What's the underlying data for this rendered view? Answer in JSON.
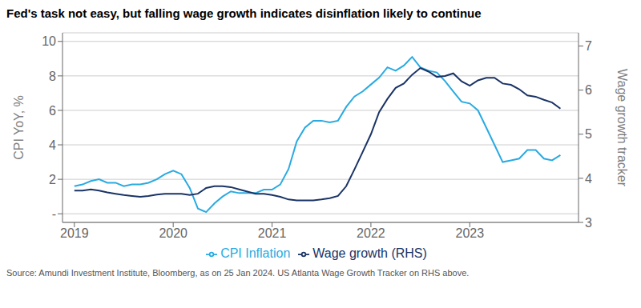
{
  "chart_data": {
    "type": "line",
    "title": "Fed's task not easy, but falling wage growth indicates disinflation likely to continue",
    "annotations": [
      "Source: Amundi Investment Institute, Bloomberg, as on 25 Jan 2024. US Atlanta Wage Growth Tracker on RHS above."
    ],
    "y_label": "CPI YoY, %",
    "y2_label": "Wage growth tracker",
    "x": [
      2019.0,
      2019.083,
      2019.167,
      2019.25,
      2019.333,
      2019.417,
      2019.5,
      2019.583,
      2019.667,
      2019.75,
      2019.833,
      2019.917,
      2020.0,
      2020.083,
      2020.167,
      2020.25,
      2020.333,
      2020.417,
      2020.5,
      2020.583,
      2020.667,
      2020.75,
      2020.833,
      2020.917,
      2021.0,
      2021.083,
      2021.167,
      2021.25,
      2021.333,
      2021.417,
      2021.5,
      2021.583,
      2021.667,
      2021.75,
      2021.833,
      2021.917,
      2022.0,
      2022.083,
      2022.167,
      2022.25,
      2022.333,
      2022.417,
      2022.5,
      2022.583,
      2022.667,
      2022.75,
      2022.833,
      2022.917,
      2023.0,
      2023.083,
      2023.167,
      2023.25,
      2023.333,
      2023.417,
      2023.5,
      2023.583,
      2023.667,
      2023.75,
      2023.833,
      2023.917
    ],
    "series": [
      {
        "name": "CPI Inflation",
        "color": "#29aae1",
        "values": [
          1.6,
          1.7,
          1.9,
          2.0,
          1.8,
          1.8,
          1.6,
          1.7,
          1.7,
          1.8,
          2.0,
          2.3,
          2.5,
          2.3,
          1.5,
          0.3,
          0.1,
          0.6,
          1.0,
          1.3,
          1.2,
          1.2,
          1.2,
          1.4,
          1.4,
          1.7,
          2.6,
          4.2,
          5.0,
          5.4,
          5.4,
          5.3,
          5.4,
          6.2,
          6.8,
          7.1,
          7.5,
          7.9,
          8.5,
          8.3,
          8.6,
          9.1,
          8.5,
          8.3,
          8.2,
          7.7,
          7.1,
          6.5,
          6.4,
          6.0,
          5.0,
          4.0,
          3.0,
          3.1,
          3.2,
          3.7,
          3.7,
          3.2,
          3.1,
          3.4
        ]
      },
      {
        "name": "Wage growth (RHS)",
        "color": "#1a3365",
        "axis": "y2",
        "values": [
          3.72,
          3.72,
          3.75,
          3.72,
          3.68,
          3.65,
          3.62,
          3.6,
          3.58,
          3.6,
          3.63,
          3.65,
          3.65,
          3.65,
          3.62,
          3.65,
          3.78,
          3.82,
          3.82,
          3.8,
          3.75,
          3.7,
          3.65,
          3.65,
          3.62,
          3.58,
          3.52,
          3.5,
          3.5,
          3.5,
          3.52,
          3.55,
          3.6,
          3.82,
          4.2,
          4.6,
          5.0,
          5.5,
          5.8,
          6.05,
          6.15,
          6.35,
          6.5,
          6.42,
          6.3,
          6.32,
          6.38,
          6.2,
          6.1,
          6.22,
          6.28,
          6.28,
          6.15,
          6.12,
          6.02,
          5.88,
          5.85,
          5.78,
          5.72,
          5.58
        ]
      }
    ],
    "xlim": [
      2018.88,
      2024.1
    ],
    "xticks": [
      2019,
      2020,
      2021,
      2022,
      2023
    ],
    "ylim": [
      -0.5,
      10.5
    ],
    "yticks": [
      {
        "value": 0,
        "label": "-"
      },
      2,
      4,
      6,
      8,
      10
    ],
    "y2lim": [
      3.0,
      7.3
    ],
    "y2ticks": [
      3,
      4,
      5,
      6,
      7
    ],
    "grid": true,
    "legend": "bottom"
  }
}
